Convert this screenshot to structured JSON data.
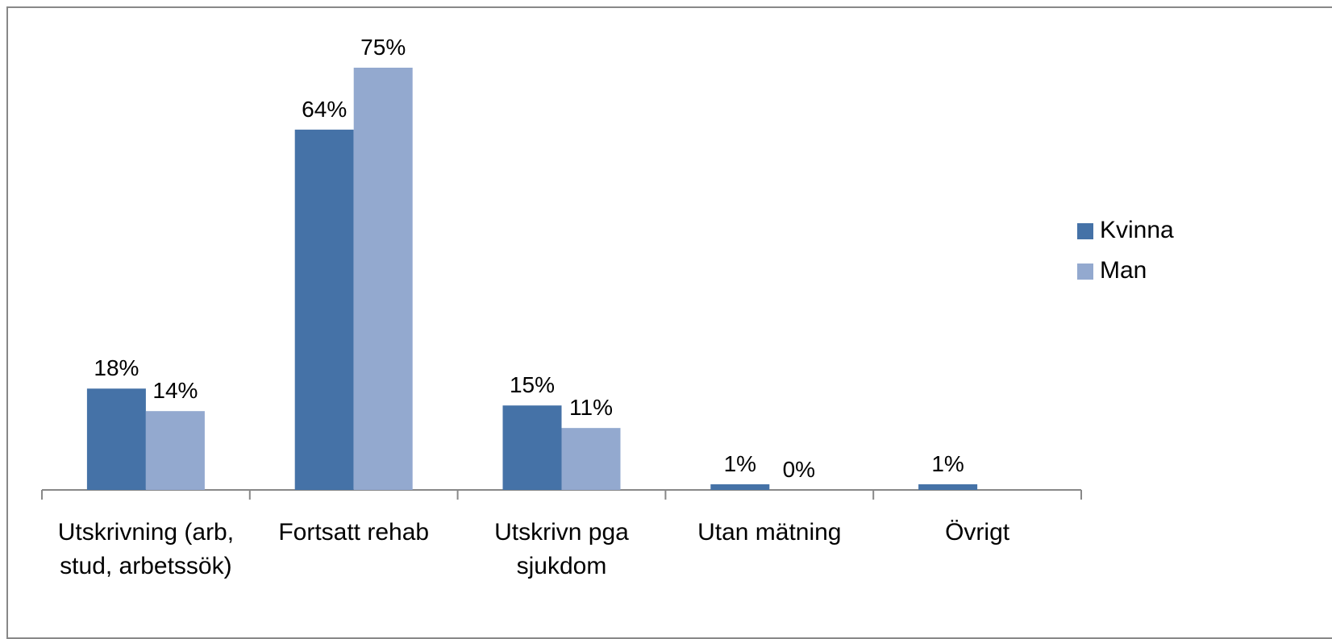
{
  "chart_data": {
    "type": "bar",
    "categories": [
      "Utskrivning (arb, stud, arbetssök)",
      "Fortsatt rehab",
      "Utskrivn pga sjukdom",
      "Utan mätning",
      "Övrigt"
    ],
    "series": [
      {
        "name": "Kvinna",
        "color": "#4572a7",
        "values": [
          18,
          64,
          15,
          1,
          1
        ],
        "value_labels": [
          "18%",
          "64%",
          "15%",
          "1%",
          "1%"
        ]
      },
      {
        "name": "Man",
        "color": "#93a9cf",
        "values": [
          14,
          75,
          11,
          0,
          null
        ],
        "value_labels": [
          "14%",
          "75%",
          "11%",
          "0%",
          null
        ]
      }
    ],
    "legend": "right"
  }
}
